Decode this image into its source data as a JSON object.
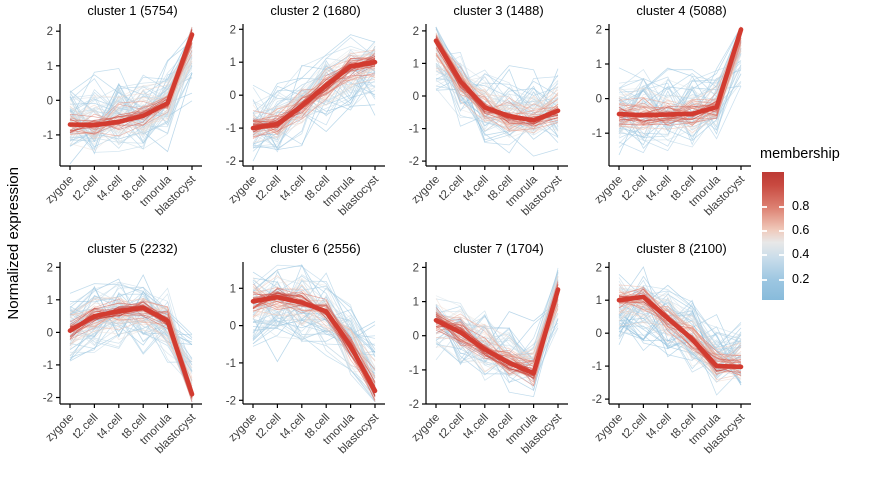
{
  "chart_data": {
    "type": "line",
    "ylabel": "Normalized expression",
    "categories": [
      "zygote",
      "t2.cell",
      "t4.cell",
      "t8.cell",
      "tmorula",
      "blastocyst"
    ],
    "legend": {
      "title": "membership",
      "tick_labels": [
        "0.8",
        "0.6",
        "0.4",
        "0.2"
      ],
      "gradient": [
        "#bd3a35 0%",
        "#c84940 10%",
        "#dd8172 28%",
        "#f0c9ba 45%",
        "#e8e8e8 55%",
        "#c7dcea 68%",
        "#9cc6e1 85%",
        "#88bbdb 100%"
      ]
    },
    "colors": {
      "center_line": "#d23b30",
      "axis": "#000000",
      "scale": [
        [
          0.1,
          "#7ab3d6"
        ],
        [
          0.25,
          "#97c4e0"
        ],
        [
          0.4,
          "#c3d9e6"
        ],
        [
          0.5,
          "#e7e6e4"
        ],
        [
          0.6,
          "#f0d0c2"
        ],
        [
          0.7,
          "#eaa693"
        ],
        [
          0.8,
          "#dd7265"
        ],
        [
          0.9,
          "#cc4a40"
        ],
        [
          1.0,
          "#c03a33"
        ]
      ]
    },
    "panels": [
      {
        "title": "cluster 1 (5754)",
        "cluster": 1,
        "size": 5754,
        "yticks": [
          2,
          1,
          0,
          -1
        ],
        "ylim": [
          -1.9,
          2.15
        ],
        "center": [
          -0.7,
          -0.72,
          -0.62,
          -0.45,
          -0.08,
          1.9
        ]
      },
      {
        "title": "cluster 2 (1680)",
        "cluster": 2,
        "size": 1680,
        "yticks": [
          2,
          1,
          0,
          -1,
          -2
        ],
        "ylim": [
          -2.15,
          2.1
        ],
        "center": [
          -1.0,
          -0.88,
          -0.33,
          0.3,
          0.88,
          1.0
        ]
      },
      {
        "title": "cluster 3 (1488)",
        "cluster": 3,
        "size": 1488,
        "yticks": [
          2,
          1,
          0,
          -1,
          -2
        ],
        "ylim": [
          -2.15,
          2.15
        ],
        "center": [
          1.7,
          0.45,
          -0.35,
          -0.62,
          -0.75,
          -0.45
        ]
      },
      {
        "title": "cluster 4 (5088)",
        "cluster": 4,
        "size": 5088,
        "yticks": [
          2,
          1,
          0,
          -1
        ],
        "ylim": [
          -1.95,
          2.1
        ],
        "center": [
          -0.45,
          -0.48,
          -0.46,
          -0.44,
          -0.25,
          2.0
        ]
      },
      {
        "title": "cluster 5 (2232)",
        "cluster": 5,
        "size": 2232,
        "yticks": [
          2,
          1,
          0,
          -1,
          -2
        ],
        "ylim": [
          -2.2,
          2.1
        ],
        "center": [
          0.05,
          0.5,
          0.65,
          0.75,
          0.35,
          -1.9
        ]
      },
      {
        "title": "cluster 6 (2556)",
        "cluster": 6,
        "size": 2556,
        "yticks": [
          1,
          0,
          -1,
          -2
        ],
        "ylim": [
          -2.1,
          1.65
        ],
        "center": [
          0.65,
          0.76,
          0.62,
          0.38,
          -0.55,
          -1.75
        ]
      },
      {
        "title": "cluster 7 (1704)",
        "cluster": 7,
        "size": 1704,
        "yticks": [
          2,
          1,
          0,
          -1,
          -2
        ],
        "ylim": [
          -2.0,
          2.1
        ],
        "center": [
          0.45,
          0.1,
          -0.4,
          -0.8,
          -1.1,
          1.35
        ]
      },
      {
        "title": "cluster 8 (2100)",
        "cluster": 8,
        "size": 2100,
        "yticks": [
          2,
          1,
          0,
          -1,
          -2
        ],
        "ylim": [
          -2.15,
          2.1
        ],
        "center": [
          1.0,
          1.1,
          0.45,
          -0.18,
          -1.0,
          -1.02
        ]
      }
    ]
  }
}
